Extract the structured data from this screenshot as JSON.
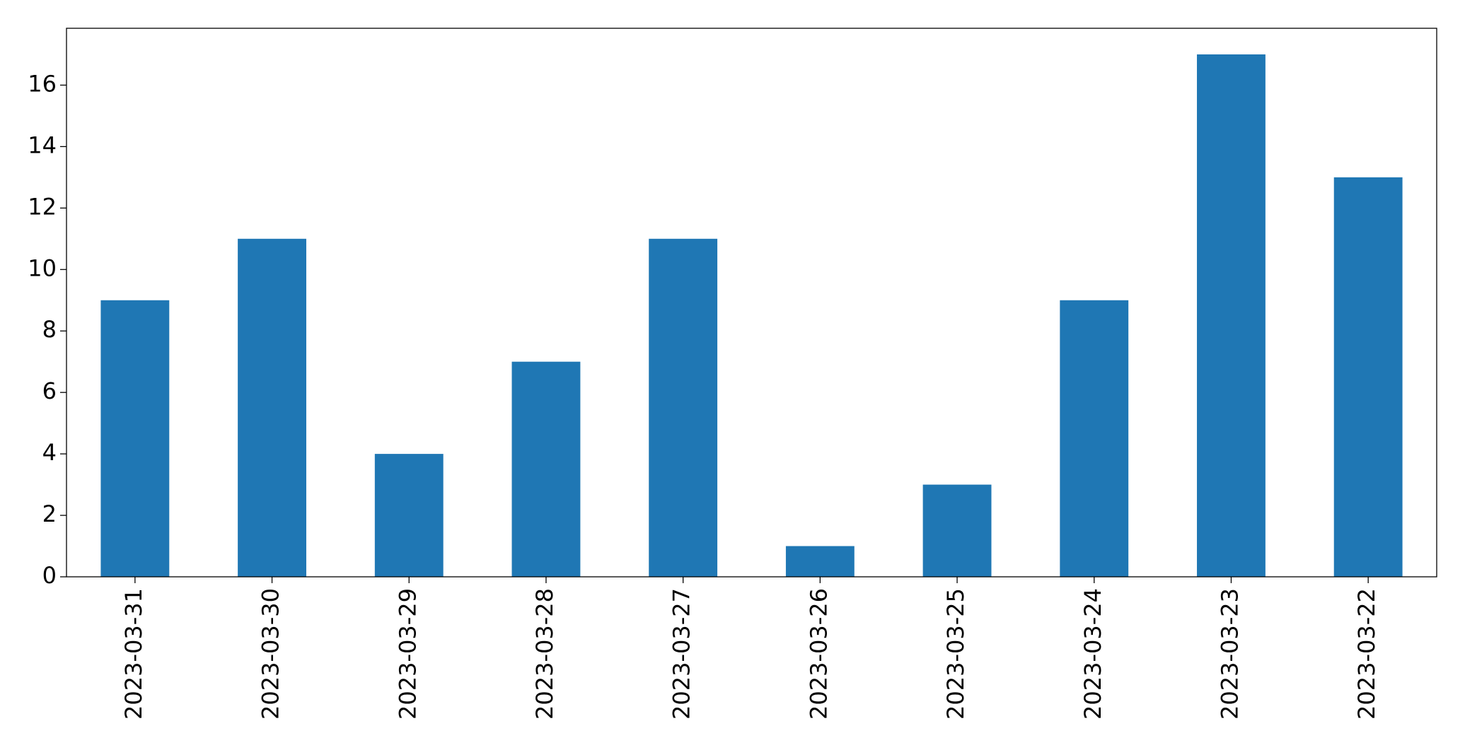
{
  "chart_data": {
    "type": "bar",
    "categories": [
      "2023-03-31",
      "2023-03-30",
      "2023-03-29",
      "2023-03-28",
      "2023-03-27",
      "2023-03-26",
      "2023-03-25",
      "2023-03-24",
      "2023-03-23",
      "2023-03-22"
    ],
    "values": [
      9,
      11,
      4,
      7,
      11,
      1,
      3,
      9,
      17,
      13
    ],
    "color": "#1f77b4",
    "ylim": [
      0,
      17.85
    ],
    "yticks": [
      0,
      2,
      4,
      6,
      8,
      10,
      12,
      14,
      16
    ],
    "grid": false
  }
}
